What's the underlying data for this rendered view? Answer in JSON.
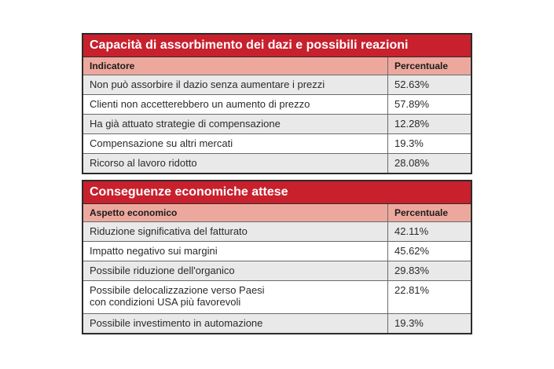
{
  "table1": {
    "title": "Capacità di assorbimento dei dazi e possibili reazioni",
    "headers": [
      "Indicatore",
      "Percentuale"
    ],
    "rows": [
      [
        "Non può assorbire il dazio senza aumentare i prezzi",
        "52.63%"
      ],
      [
        "Clienti non accetterebbero un aumento di prezzo",
        "57.89%"
      ],
      [
        "Ha già attuato strategie di compensazione",
        "12.28%"
      ],
      [
        "Compensazione su altri mercati",
        "19.3%"
      ],
      [
        "Ricorso al lavoro ridotto",
        "28.08%"
      ]
    ]
  },
  "table2": {
    "title": "Conseguenze economiche attese",
    "headers": [
      "Aspetto economico",
      "Percentuale"
    ],
    "rows": [
      [
        "Riduzione significativa del fatturato",
        "42.11%"
      ],
      [
        "Impatto negativo sui margini",
        "45.62%"
      ],
      [
        "Possibile riduzione dell'organico",
        "29.83%"
      ],
      [
        "Possibile delocalizzazione verso Paesi",
        "22.81%"
      ],
      [
        "Possibile investimento in automazione",
        "19.3%"
      ]
    ],
    "row4_line2": "con condizioni USA più favorevoli"
  },
  "colors": {
    "title_bg": "#c8202d",
    "header_bg": "#eda89e",
    "alt_row_bg": "#e9e9e9"
  }
}
